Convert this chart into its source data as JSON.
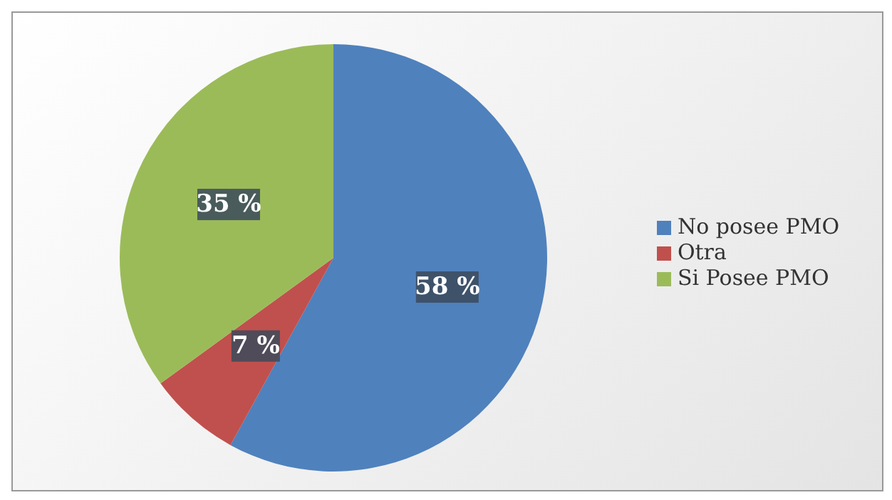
{
  "chart_data": {
    "type": "pie",
    "categories": [
      "No posee PMO",
      "Otra",
      "Si Posee PMO"
    ],
    "values": [
      58,
      7,
      35
    ],
    "colors": [
      "#4f81bd",
      "#c0504d",
      "#9bbb59"
    ],
    "value_labels": [
      "58 %",
      "7 %",
      "35 %"
    ],
    "legend": "right"
  }
}
